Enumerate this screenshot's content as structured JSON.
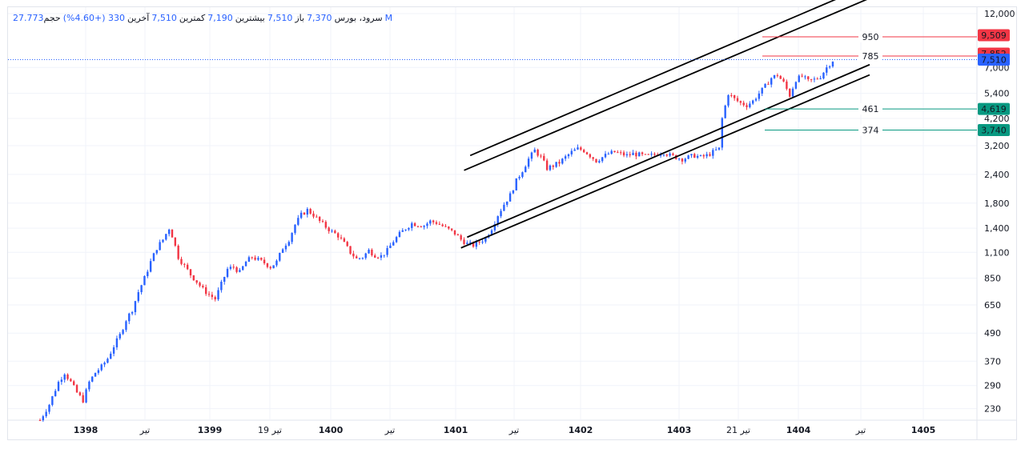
{
  "legend": {
    "symbol": "سرود، بورس",
    "open_label": "باز",
    "open_value": "7,370",
    "high_label": "بیشترین",
    "high_value": "7,510",
    "low_label": "کمترین",
    "low_value": "7,190",
    "close_label": "آخرین",
    "close_value": "7,510",
    "change": "330 (+4.60%)",
    "volume_label": "حجم",
    "volume_value": "27.773M"
  },
  "colors": {
    "up": "#2962ff",
    "down": "#f23645",
    "grid": "#f0f3fa",
    "axis_text": "#131722",
    "trend": "#000000",
    "resistance": "#f23645",
    "support": "#089981",
    "last_price": "#2962ff"
  },
  "chart_data": {
    "type": "candlestick",
    "scale": "log",
    "ylim": [
      200,
      12000
    ],
    "y_ticks": [
      "12,000",
      "7,000",
      "5,400",
      "4,200",
      "3,200",
      "2,400",
      "1,800",
      "1,400",
      "1,100",
      "850",
      "650",
      "490",
      "370",
      "290",
      "230"
    ],
    "x_ticks": [
      {
        "label": "1398",
        "bold": true
      },
      {
        "label": "تیر",
        "bold": false
      },
      {
        "label": "1399",
        "bold": true
      },
      {
        "label": "19 تیر",
        "bold": false
      },
      {
        "label": "1400",
        "bold": true
      },
      {
        "label": "تیر",
        "bold": false
      },
      {
        "label": "1401",
        "bold": true
      },
      {
        "label": "تیر",
        "bold": false
      },
      {
        "label": "1402",
        "bold": true
      },
      {
        "label": "1403",
        "bold": true
      },
      {
        "label": "21 تیر",
        "bold": false
      },
      {
        "label": "1404",
        "bold": true
      },
      {
        "label": "تیر",
        "bold": false
      },
      {
        "label": "1405",
        "bold": true
      }
    ],
    "price_path": [
      [
        0,
        205
      ],
      [
        3,
        240
      ],
      [
        6,
        300
      ],
      [
        8,
        330
      ],
      [
        10,
        300
      ],
      [
        12,
        270
      ],
      [
        14,
        250
      ],
      [
        16,
        300
      ],
      [
        18,
        330
      ],
      [
        20,
        350
      ],
      [
        22,
        380
      ],
      [
        24,
        430
      ],
      [
        26,
        480
      ],
      [
        28,
        560
      ],
      [
        30,
        620
      ],
      [
        32,
        740
      ],
      [
        34,
        850
      ],
      [
        36,
        1000
      ],
      [
        38,
        1150
      ],
      [
        40,
        1250
      ],
      [
        42,
        1400
      ],
      [
        43,
        1300
      ],
      [
        45,
        1050
      ],
      [
        47,
        960
      ],
      [
        49,
        880
      ],
      [
        51,
        820
      ],
      [
        53,
        760
      ],
      [
        55,
        720
      ],
      [
        57,
        690
      ],
      [
        59,
        800
      ],
      [
        61,
        930
      ],
      [
        63,
        950
      ],
      [
        65,
        900
      ],
      [
        67,
        1000
      ],
      [
        69,
        1050
      ],
      [
        71,
        1020
      ],
      [
        73,
        990
      ],
      [
        75,
        950
      ],
      [
        77,
        1000
      ],
      [
        79,
        1150
      ],
      [
        81,
        1250
      ],
      [
        83,
        1450
      ],
      [
        85,
        1600
      ],
      [
        87,
        1680
      ],
      [
        89,
        1600
      ],
      [
        91,
        1500
      ],
      [
        93,
        1420
      ],
      [
        95,
        1350
      ],
      [
        97,
        1300
      ],
      [
        99,
        1200
      ],
      [
        101,
        1100
      ],
      [
        103,
        1030
      ],
      [
        105,
        1050
      ],
      [
        107,
        1120
      ],
      [
        109,
        1070
      ],
      [
        111,
        1060
      ],
      [
        113,
        1120
      ],
      [
        115,
        1230
      ],
      [
        117,
        1320
      ],
      [
        119,
        1400
      ],
      [
        121,
        1470
      ],
      [
        123,
        1450
      ],
      [
        125,
        1440
      ],
      [
        127,
        1500
      ],
      [
        129,
        1480
      ],
      [
        131,
        1430
      ],
      [
        133,
        1380
      ],
      [
        135,
        1330
      ],
      [
        137,
        1250
      ],
      [
        139,
        1200
      ],
      [
        141,
        1180
      ],
      [
        143,
        1220
      ],
      [
        145,
        1270
      ],
      [
        147,
        1400
      ],
      [
        149,
        1600
      ],
      [
        151,
        1780
      ],
      [
        153,
        1950
      ],
      [
        155,
        2250
      ],
      [
        157,
        2500
      ],
      [
        159,
        2800
      ],
      [
        161,
        3050
      ],
      [
        163,
        2850
      ],
      [
        165,
        2550
      ],
      [
        167,
        2620
      ],
      [
        169,
        2700
      ],
      [
        171,
        2850
      ],
      [
        173,
        3000
      ],
      [
        175,
        3100
      ],
      [
        177,
        3050
      ],
      [
        179,
        2900
      ],
      [
        181,
        2750
      ],
      [
        183,
        2850
      ],
      [
        185,
        2950
      ],
      [
        187,
        3000
      ],
      [
        189,
        2950
      ],
      [
        191,
        2900
      ],
      [
        193,
        2950
      ],
      [
        195,
        2920
      ],
      [
        197,
        2880
      ],
      [
        199,
        2900
      ],
      [
        201,
        2950
      ],
      [
        203,
        3000
      ],
      [
        205,
        2900
      ],
      [
        207,
        2850
      ],
      [
        209,
        2800
      ],
      [
        211,
        2850
      ],
      [
        213,
        2900
      ],
      [
        215,
        2850
      ],
      [
        217,
        2900
      ],
      [
        219,
        3000
      ],
      [
        221,
        3100
      ],
      [
        222,
        4200
      ],
      [
        224,
        5400
      ],
      [
        226,
        5100
      ],
      [
        228,
        4900
      ],
      [
        230,
        4800
      ],
      [
        232,
        5000
      ],
      [
        234,
        5400
      ],
      [
        236,
        5800
      ],
      [
        238,
        6300
      ],
      [
        240,
        6500
      ],
      [
        242,
        6000
      ],
      [
        244,
        5300
      ],
      [
        246,
        6200
      ],
      [
        248,
        6400
      ],
      [
        250,
        6100
      ],
      [
        252,
        6200
      ],
      [
        254,
        6400
      ],
      [
        256,
        7000
      ],
      [
        258,
        7510
      ]
    ],
    "trend_channels": [
      {
        "from": [
          140,
          2900
        ],
        "to": [
          270,
          16000
        ]
      },
      {
        "from": [
          138,
          2500
        ],
        "to": [
          270,
          14000
        ]
      },
      {
        "from": [
          139,
          1280
        ],
        "to": [
          270,
          7200
        ]
      },
      {
        "from": [
          137,
          1150
        ],
        "to": [
          270,
          6500
        ]
      }
    ],
    "levels": [
      {
        "name": "950",
        "price": 9509,
        "tag": "9,509",
        "kind": "resistance"
      },
      {
        "name": "785",
        "price": 7852,
        "tag": "7,852",
        "kind": "resistance"
      },
      {
        "name": "461",
        "price": 4619,
        "tag": "4,619",
        "kind": "support"
      },
      {
        "name": "374",
        "price": 3740,
        "tag": "3,740",
        "kind": "support"
      }
    ],
    "last_price": {
      "value": 7510,
      "tag": "7,510"
    }
  }
}
